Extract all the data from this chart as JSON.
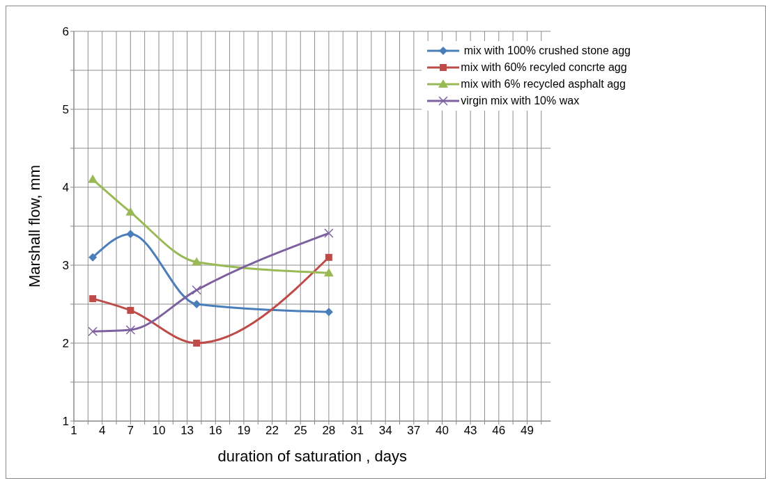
{
  "chart_data": {
    "type": "line",
    "xlabel": "duration of saturation , days",
    "ylabel": "Marshall flow, mm",
    "x": [
      3,
      7,
      14,
      28
    ],
    "xlim": [
      1,
      51.5
    ],
    "xticks": [
      1,
      {
        "value": 2.5,
        "label": null
      },
      4,
      {
        "value": 5.5,
        "label": null
      },
      7,
      {
        "value": 8.5,
        "label": null
      },
      10,
      {
        "value": 11.5,
        "label": null
      },
      13,
      {
        "value": 14.5,
        "label": null
      },
      16,
      {
        "value": 17.5,
        "label": null
      },
      19,
      {
        "value": 20.5,
        "label": null
      },
      22,
      {
        "value": 23.5,
        "label": null
      },
      25,
      {
        "value": 26.5,
        "label": null
      },
      28,
      {
        "value": 29.5,
        "label": null
      },
      31,
      {
        "value": 32.5,
        "label": null
      },
      34,
      {
        "value": 35.5,
        "label": null
      },
      37,
      {
        "value": 38.5,
        "label": null
      },
      40,
      {
        "value": 41.5,
        "label": null
      },
      43,
      {
        "value": 44.5,
        "label": null
      },
      46,
      {
        "value": 47.5,
        "label": null
      },
      49,
      {
        "value": 50.5,
        "label": null
      }
    ],
    "ylim": [
      1,
      6
    ],
    "yticks": [
      1,
      {
        "value": 1.5,
        "label": null
      },
      2,
      {
        "value": 2.5,
        "label": null
      },
      3,
      {
        "value": 3.5,
        "label": null
      },
      4,
      {
        "value": 4.5,
        "label": null
      },
      5,
      {
        "value": 5.5,
        "label": null
      },
      6
    ],
    "grid": true,
    "legend": "top right",
    "line_style": "solid",
    "series": [
      {
        "name": " mix with 100% crushed stone agg",
        "color": "#4a7ebb",
        "marker": "diamond",
        "values": [
          3.1,
          3.4,
          2.5,
          2.4
        ]
      },
      {
        "name": "mix with 60% recyled concrte agg",
        "color": "#be4b48",
        "marker": "square",
        "values": [
          2.57,
          2.42,
          2.0,
          3.1
        ]
      },
      {
        "name": "mix with 6% recycled asphalt agg",
        "color": "#98b954",
        "marker": "triangle",
        "values": [
          4.1,
          3.68,
          3.04,
          2.9
        ]
      },
      {
        "name": "virgin mix with 10% wax",
        "color": "#7d60a0",
        "marker": "cross",
        "values": [
          2.15,
          2.17,
          2.68,
          3.41
        ]
      }
    ]
  }
}
